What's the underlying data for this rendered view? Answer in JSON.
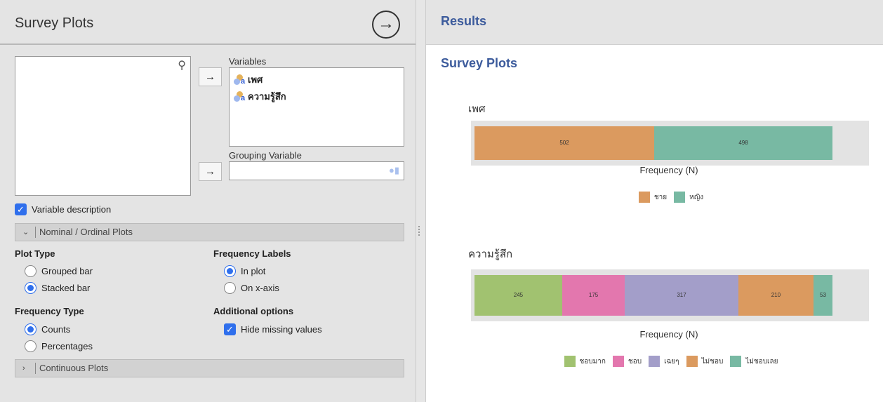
{
  "left": {
    "title": "Survey Plots",
    "run_icon": "arrow-circle-right-icon",
    "variables_label": "Variables",
    "variables": [
      "เพศ",
      "ความรู้สึก"
    ],
    "grouping_label": "Grouping Variable",
    "variable_description": {
      "label": "Variable description",
      "checked": true
    },
    "section_nominal": "Nominal / Ordinal Plots",
    "plot_type": {
      "label": "Plot Type",
      "options": [
        "Grouped bar",
        "Stacked bar"
      ],
      "selected": "Stacked bar"
    },
    "frequency_labels": {
      "label": "Frequency Labels",
      "options": [
        "In plot",
        "On x-axis"
      ],
      "selected": "In plot"
    },
    "frequency_type": {
      "label": "Frequency Type",
      "options": [
        "Counts",
        "Percentages"
      ],
      "selected": "Counts"
    },
    "additional": {
      "label": "Additional options",
      "hide_missing": "Hide missing values",
      "checked": true
    },
    "section_continuous": "Continuous Plots"
  },
  "right": {
    "header": "Results",
    "title": "Survey Plots"
  },
  "chart_data": [
    {
      "type": "bar",
      "stacked": true,
      "orientation": "horizontal",
      "title": "เพศ",
      "xlabel": "Frequency (N)",
      "legend": "bottom",
      "series": [
        {
          "name": "ชาย",
          "value": 502,
          "color": "#DB9A5F"
        },
        {
          "name": "หญิง",
          "value": 498,
          "color": "#78B9A3"
        }
      ]
    },
    {
      "type": "bar",
      "stacked": true,
      "orientation": "horizontal",
      "title": "ความรู้สึก",
      "xlabel": "Frequency (N)",
      "legend": "bottom",
      "series": [
        {
          "name": "ชอบมาก",
          "value": 245,
          "color": "#A1C270"
        },
        {
          "name": "ชอบ",
          "value": 175,
          "color": "#E377AE"
        },
        {
          "name": "เฉยๆ",
          "value": 317,
          "color": "#A39EC9"
        },
        {
          "name": "ไม่ชอบ",
          "value": 210,
          "color": "#DB9A5F"
        },
        {
          "name": "ไม่ชอบเลย",
          "value": 53,
          "color": "#78B9A3"
        }
      ]
    }
  ]
}
